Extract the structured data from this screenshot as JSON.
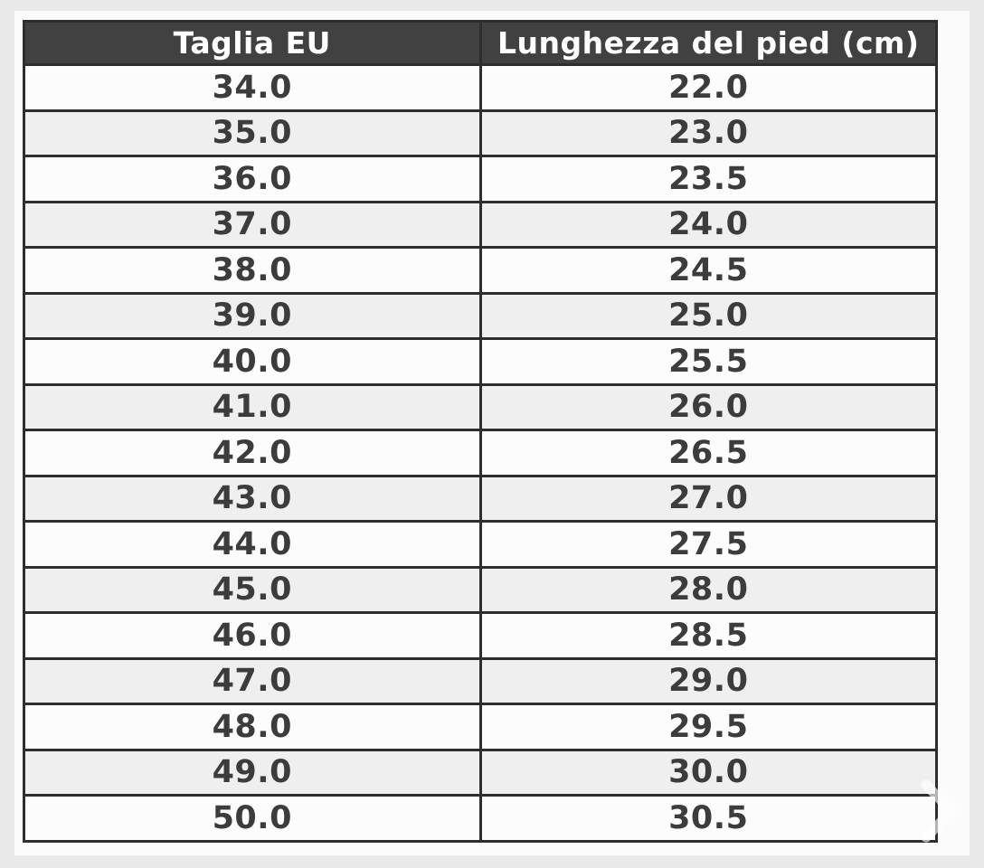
{
  "page": {
    "background_color": "#e9e9e9",
    "panel_color": "#fbfbfb"
  },
  "table": {
    "columns": [
      "Taglia EU",
      "Lunghezza del pied (cm)"
    ],
    "rows": [
      [
        "34.0",
        "22.0"
      ],
      [
        "35.0",
        "23.0"
      ],
      [
        "36.0",
        "23.5"
      ],
      [
        "37.0",
        "24.0"
      ],
      [
        "38.0",
        "24.5"
      ],
      [
        "39.0",
        "25.0"
      ],
      [
        "40.0",
        "25.5"
      ],
      [
        "41.0",
        "26.0"
      ],
      [
        "42.0",
        "26.5"
      ],
      [
        "43.0",
        "27.0"
      ],
      [
        "44.0",
        "27.5"
      ],
      [
        "45.0",
        "28.0"
      ],
      [
        "46.0",
        "28.5"
      ],
      [
        "47.0",
        "29.0"
      ],
      [
        "48.0",
        "29.5"
      ],
      [
        "49.0",
        "30.0"
      ],
      [
        "50.0",
        "30.5"
      ]
    ],
    "colors": {
      "header_bg": "#414141",
      "header_text": "#ffffff",
      "row_bg": "#fcfcfc",
      "row_alt_bg": "#efefef",
      "border": "#2e2e2e",
      "cell_text": "#3c3c3c"
    }
  },
  "overlay": {
    "next_arrow_glyph": "chevron-right"
  },
  "chart_data": {
    "type": "table",
    "title": "",
    "columns": [
      "Taglia EU",
      "Lunghezza del pied (cm)"
    ],
    "rows": [
      [
        34.0,
        22.0
      ],
      [
        35.0,
        23.0
      ],
      [
        36.0,
        23.5
      ],
      [
        37.0,
        24.0
      ],
      [
        38.0,
        24.5
      ],
      [
        39.0,
        25.0
      ],
      [
        40.0,
        25.5
      ],
      [
        41.0,
        26.0
      ],
      [
        42.0,
        26.5
      ],
      [
        43.0,
        27.0
      ],
      [
        44.0,
        27.5
      ],
      [
        45.0,
        28.0
      ],
      [
        46.0,
        28.5
      ],
      [
        47.0,
        29.0
      ],
      [
        48.0,
        29.5
      ],
      [
        49.0,
        30.0
      ],
      [
        50.0,
        30.5
      ]
    ]
  }
}
